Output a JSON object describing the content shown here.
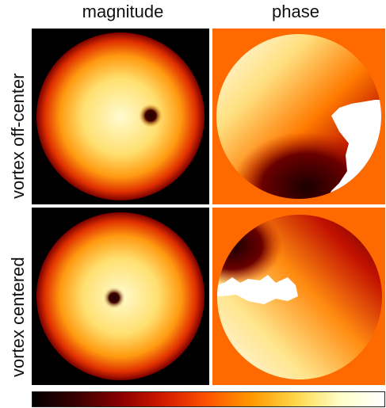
{
  "columns": {
    "magnitude": "magnitude",
    "phase": "phase"
  },
  "rows": {
    "off_center": "vortex off-center",
    "centered": "vortex centered"
  },
  "colors": {
    "phase_background": "#ff6a00",
    "colormap": [
      "#000000",
      "#3a0000",
      "#8a0000",
      "#d41a00",
      "#ff5500",
      "#ff9a00",
      "#ffd84a",
      "#ffffc8",
      "#ffffff"
    ]
  }
}
